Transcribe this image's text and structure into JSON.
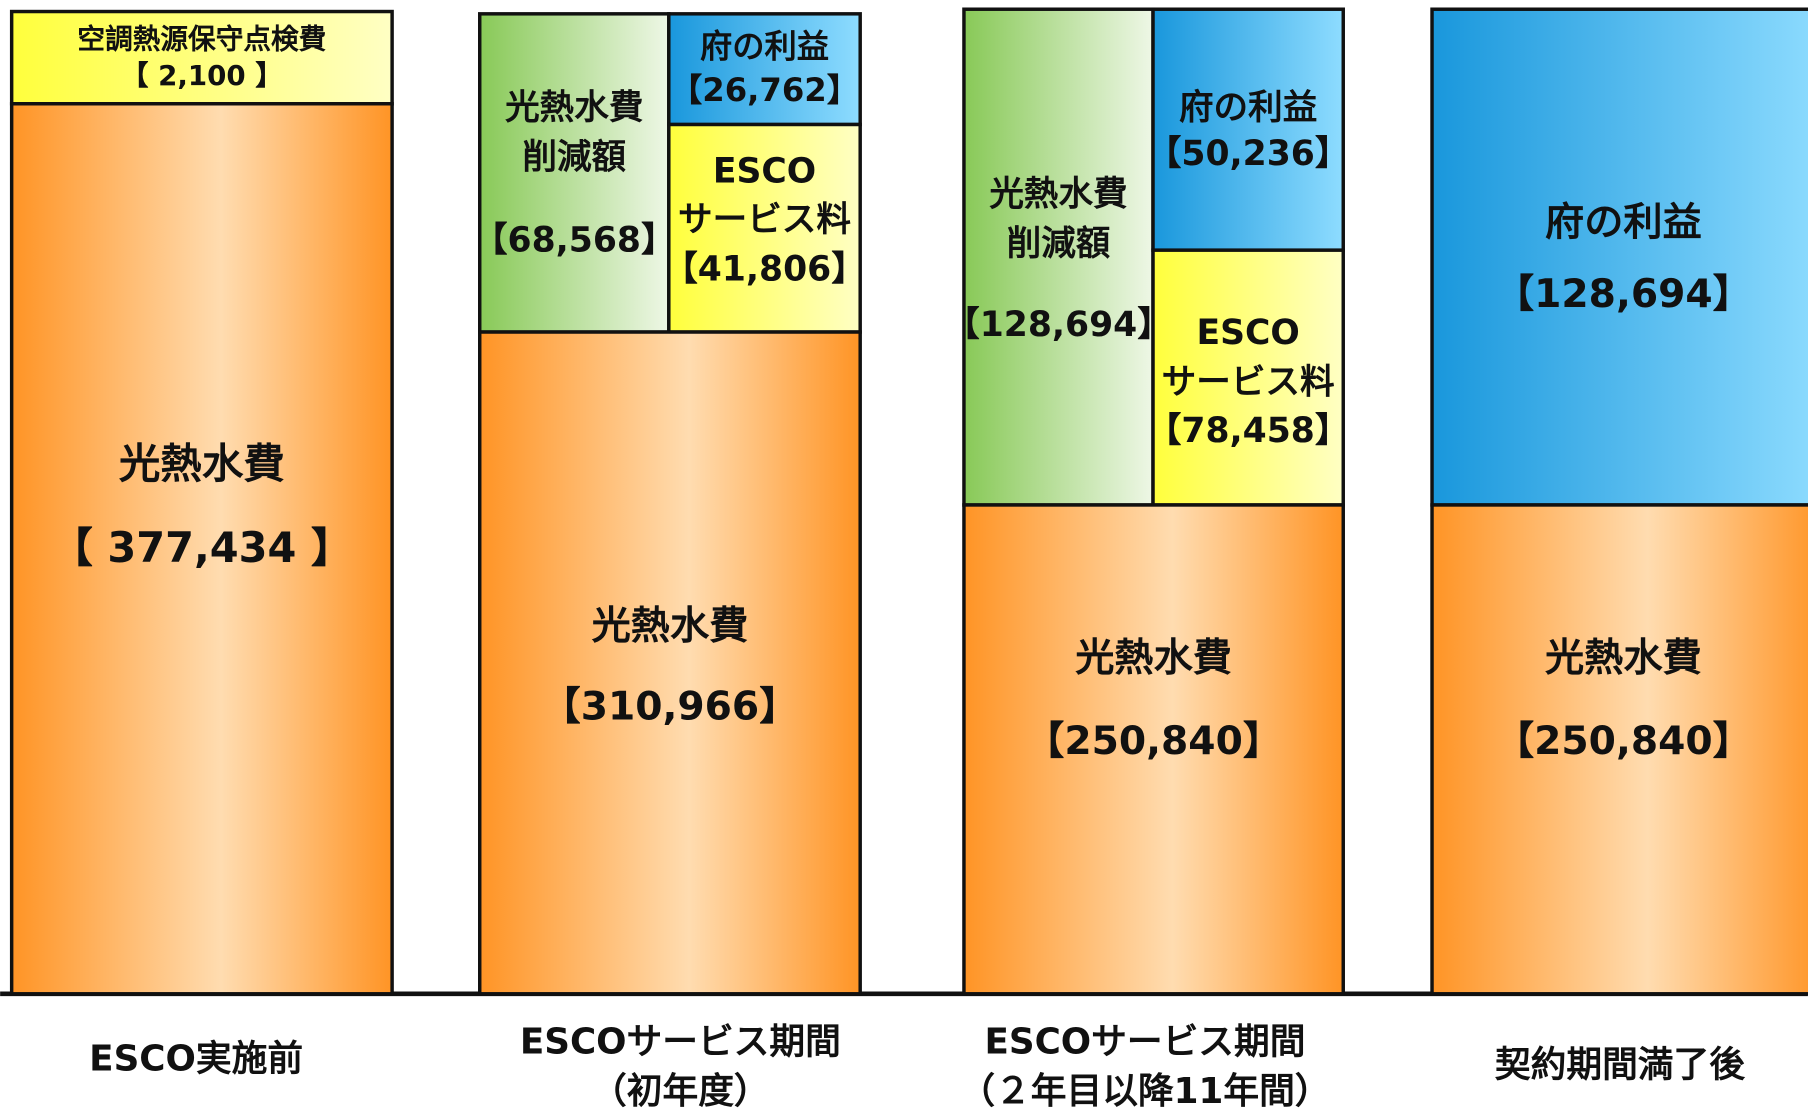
{
  "columns": [
    {
      "label": [
        "ESCO実施前"
      ],
      "boxes": [
        {
          "name": [
            "空調熱源保守点検費"
          ],
          "value": "【 2,100 】"
        },
        {
          "name": [
            "光熱水費"
          ],
          "value": "【 377,434 】"
        }
      ]
    },
    {
      "label": [
        "ESCOサービス期間",
        "（初年度）"
      ],
      "boxes": [
        {
          "name": [
            "光熱水費",
            "削減額"
          ],
          "value": "【68,568】"
        },
        {
          "name": [
            "府の利益"
          ],
          "value": "【26,762】"
        },
        {
          "name": [
            "ESCO",
            "サービス料"
          ],
          "value": "【41,806】"
        },
        {
          "name": [
            "光熱水費"
          ],
          "value": "【310,966】"
        }
      ]
    },
    {
      "label": [
        "ESCOサービス期間",
        "（２年目以降11年間）"
      ],
      "boxes": [
        {
          "name": [
            "光熱水費",
            "削減額"
          ],
          "value": "【128,694】"
        },
        {
          "name": [
            "府の利益"
          ],
          "value": "【50,236】"
        },
        {
          "name": [
            "ESCO",
            "サービス料"
          ],
          "value": "【78,458】"
        },
        {
          "name": [
            "光熱水費"
          ],
          "value": "【250,840】"
        }
      ]
    },
    {
      "label": [
        "契約期間満了後"
      ],
      "boxes": [
        {
          "name": [
            "府の利益"
          ],
          "value": "【128,694】"
        },
        {
          "name": [
            "光熱水費"
          ],
          "value": "【250,840】"
        }
      ]
    }
  ]
}
